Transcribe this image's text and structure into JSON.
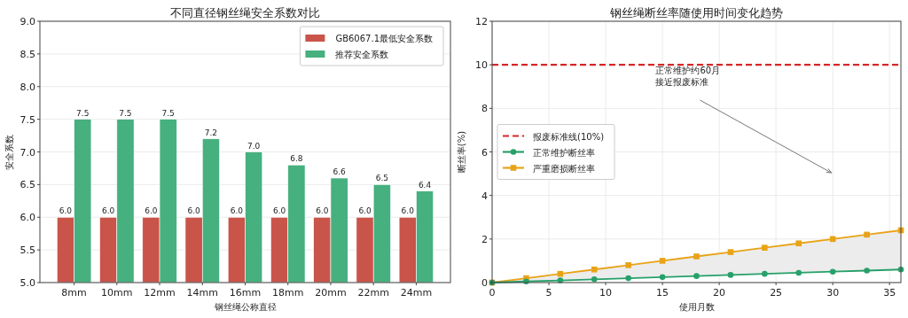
{
  "chart_data": [
    {
      "type": "bar",
      "title": "不同直径钢丝绳安全系数对比",
      "xlabel": "钢丝绳公称直径",
      "ylabel": "安全系数",
      "categories": [
        "8mm",
        "10mm",
        "12mm",
        "14mm",
        "16mm",
        "18mm",
        "20mm",
        "22mm",
        "24mm"
      ],
      "series": [
        {
          "name": "GB6067.1最低安全系数",
          "color": "#c9544a",
          "values": [
            6,
            6,
            6,
            6,
            6,
            6,
            6,
            6,
            6
          ],
          "value_labels": [
            "6.0",
            "6.0",
            "6.0",
            "6.0",
            "6.0",
            "6.0",
            "6.0",
            "6.0",
            "6.0"
          ]
        },
        {
          "name": "推荐安全系数",
          "color": "#46b07e",
          "values": [
            7.5,
            7.5,
            7.5,
            7.2,
            7.0,
            6.8,
            6.6,
            6.5,
            6.4
          ],
          "value_labels": [
            "7.5",
            "7.5",
            "7.5",
            "7.2",
            "7.0",
            "6.8",
            "6.6",
            "6.5",
            "6.4"
          ]
        }
      ],
      "ylim": [
        5,
        9
      ],
      "yticks": [
        {
          "value": 5,
          "label": "5.0"
        },
        {
          "value": 5.5,
          "label": "5.5"
        },
        {
          "value": 6,
          "label": "6.0"
        },
        {
          "value": 6.5,
          "label": "6.5"
        },
        {
          "value": 7,
          "label": "7.0"
        },
        {
          "value": 7.5,
          "label": "7.5"
        },
        {
          "value": 8,
          "label": "8.0"
        },
        {
          "value": 8.5,
          "label": "8.5"
        },
        {
          "value": 9,
          "label": "9.0"
        }
      ],
      "grid": "y",
      "legend": "top right"
    },
    {
      "type": "line",
      "title": "钢丝绳断丝率随使用时间变化趋势",
      "xlabel": "使用月数",
      "ylabel": "断丝率(%)",
      "x": [
        0,
        3,
        6,
        9,
        12,
        15,
        18,
        21,
        24,
        27,
        30,
        33,
        36
      ],
      "series": [
        {
          "name": "正常维护断丝率",
          "color": "#27a06a",
          "marker": "circle",
          "values": [
            0,
            0.05,
            0.1,
            0.15,
            0.2,
            0.25,
            0.3,
            0.35,
            0.4,
            0.45,
            0.5,
            0.55,
            0.6
          ]
        },
        {
          "name": "严重磨损断丝率",
          "color": "#e8a317",
          "marker": "square",
          "values": [
            0,
            0.2,
            0.4,
            0.6,
            0.8,
            1.0,
            1.2,
            1.4,
            1.6,
            1.8,
            2.0,
            2.2,
            2.4
          ]
        }
      ],
      "ref_lines": [
        {
          "axis": "y",
          "value": 10,
          "label": "报废标准线(10%)",
          "color": "#d62728",
          "line_style": "dashed"
        }
      ],
      "annotations": [
        "正常维护约60月",
        "接近报废标准"
      ],
      "xlim": [
        0,
        36
      ],
      "xticks": [
        0,
        5,
        10,
        15,
        20,
        25,
        30,
        35
      ],
      "ylim": [
        0,
        12
      ],
      "yticks": [
        0,
        2,
        4,
        6,
        8,
        10,
        12
      ],
      "grid": true,
      "legend": "center left"
    }
  ]
}
